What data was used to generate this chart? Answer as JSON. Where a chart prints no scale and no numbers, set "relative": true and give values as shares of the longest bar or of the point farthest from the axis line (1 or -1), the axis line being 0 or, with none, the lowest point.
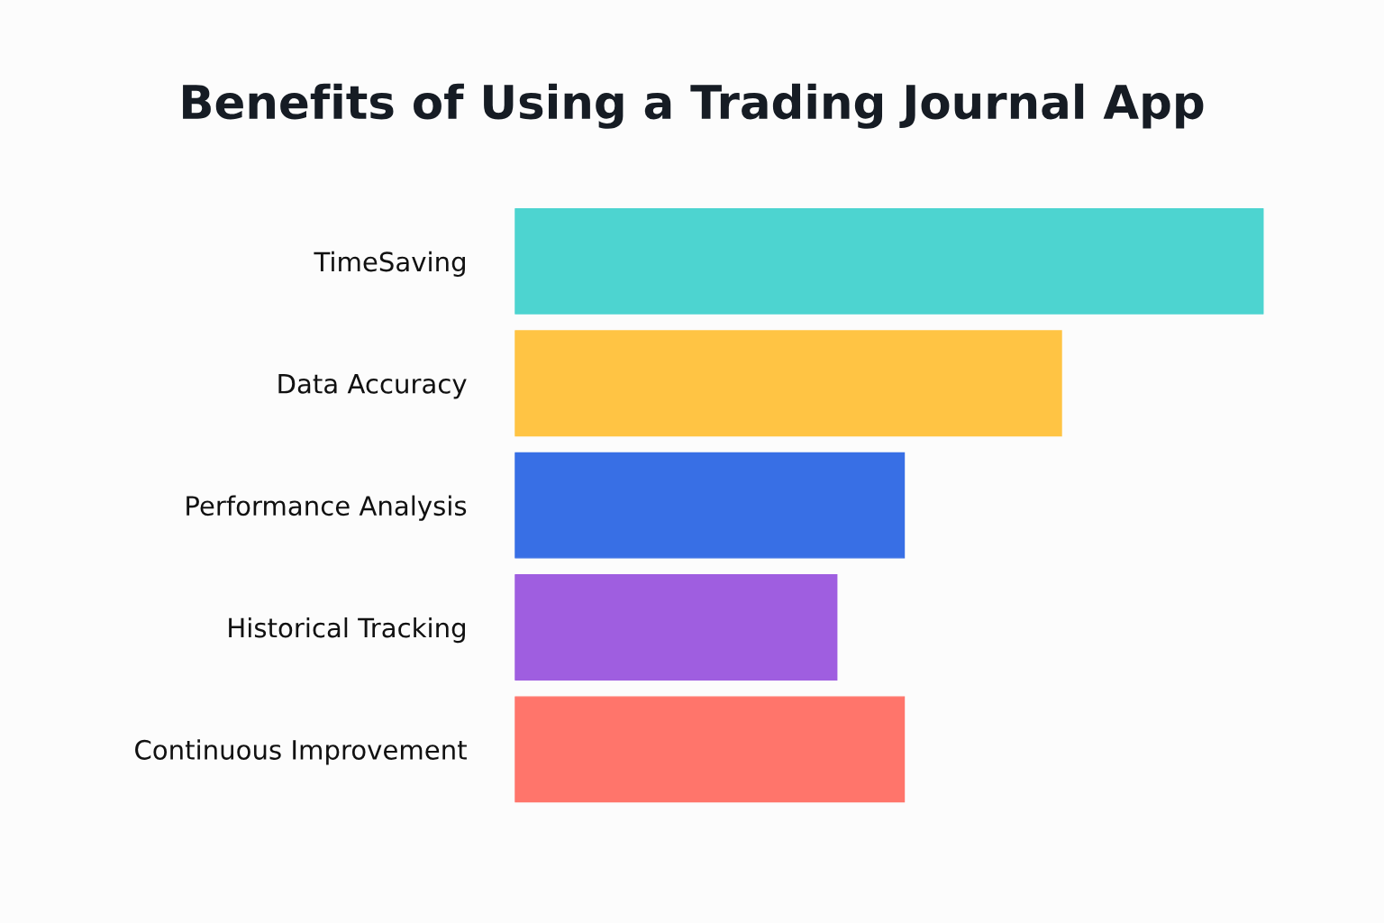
{
  "chart_data": {
    "type": "bar",
    "orientation": "horizontal",
    "relative": true,
    "title": "Benefits of Using a Trading Journal App",
    "categories": [
      "TimeSaving",
      "Data Accuracy",
      "Performance Analysis",
      "Historical Tracking",
      "Continuous Improvement"
    ],
    "values": [
      1,
      0.73,
      0.52,
      0.43,
      0.52
    ],
    "colors": [
      "#4dd4d0",
      "#ffc444",
      "#386fe5",
      "#9f5ee0",
      "#ff756b"
    ],
    "grid": false,
    "legend": false,
    "tick_labels": "y"
  }
}
